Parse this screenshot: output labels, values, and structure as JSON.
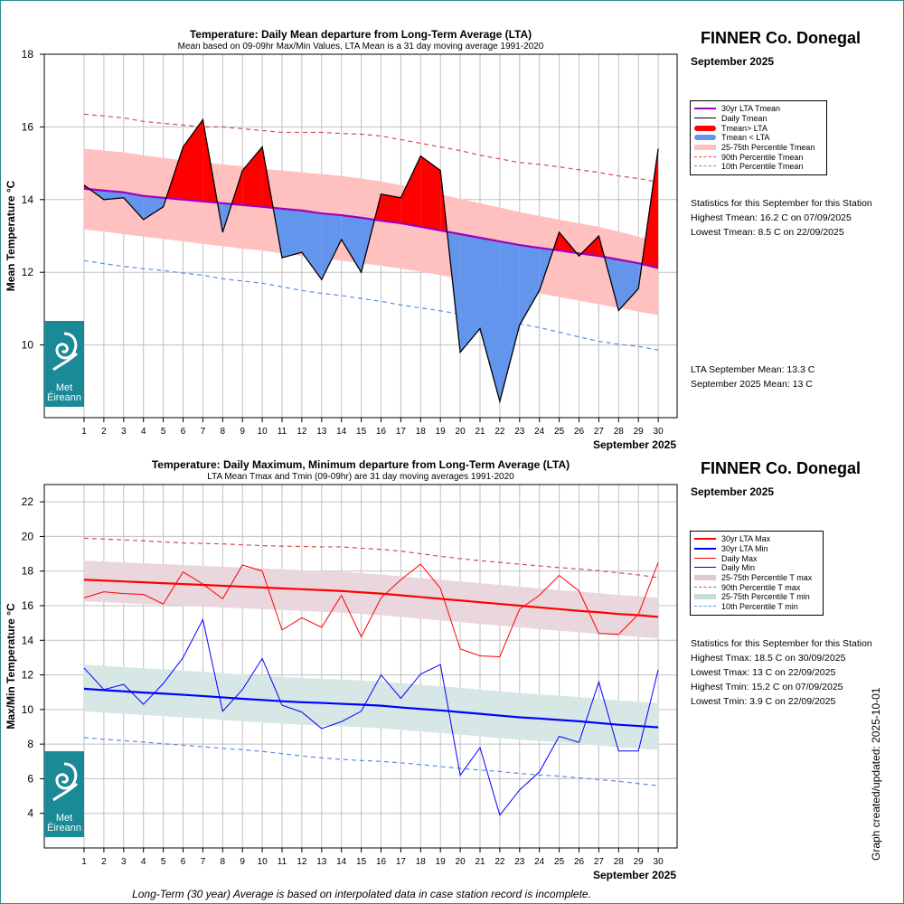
{
  "footnote": "Long-Term (30 year) Average is based on interpolated data in case station record is incomplete.",
  "graph_created": "Graph created/updated:  2025-10-01",
  "logo_text": [
    "Met",
    "Éireann"
  ],
  "panel1": {
    "station": "FINNER Co. Donegal",
    "month": "September 2025",
    "legend": [
      "30yr LTA Tmean",
      "Daily Tmean",
      "Tmean> LTA",
      "Tmean < LTA",
      "25-75th Percentile Tmean",
      "90th Percentile Tmean",
      "10th Percentile Tmean"
    ],
    "stats_title": "Statistics for this September for this Station",
    "stats": [
      "Highest Tmean: 16.2 C on 07/09/2025",
      "Lowest Tmean: 8.5 C on 22/09/2025"
    ],
    "means": [
      "LTA September Mean: 13.3 C",
      "September 2025 Mean: 13 C"
    ]
  },
  "panel2": {
    "station": "FINNER Co. Donegal",
    "month": "September 2025",
    "legend": [
      "30yr LTA Max",
      "30yr LTA Min",
      "Daily Max",
      "Daily Min",
      "25-75th Percentile T max",
      "90th Percentile T max",
      "25-75th Percentile T min",
      "10th Percentile T min"
    ],
    "stats_title": "Statistics for this September for this Station",
    "stats": [
      "Highest Tmax: 18.5 C on 30/09/2025",
      "Lowest Tmax: 13 C on 22/09/2025",
      "Highest Tmin: 15.2 C on 07/09/2025",
      "Lowest Tmin: 3.9 C on 22/09/2025"
    ]
  },
  "colors": {
    "lta_mean": "#a000c0",
    "daily_line": "#000000",
    "above": "#ff0000",
    "below": "#6495ed",
    "band_mean": "#ffc0c0",
    "p90": "#d05050",
    "p10": "#5a8ee0",
    "max_line": "#ff0000",
    "min_line": "#0000ff",
    "band_max": "#ead6dd",
    "band_min": "#d6e7e5",
    "logo": "#1a8a96"
  },
  "chart_data": [
    {
      "type": "line",
      "title": "Temperature: Daily Mean departure from Long-Term Average (LTA)",
      "subtitle": "Mean based on 09-09hr Max/Min Values, LTA Mean is a 31 day moving average 1991-2020",
      "xlabel": "September 2025",
      "ylabel": "Mean Temperature °C",
      "x": [
        1,
        2,
        3,
        4,
        5,
        6,
        7,
        8,
        9,
        10,
        11,
        12,
        13,
        14,
        15,
        16,
        17,
        18,
        19,
        20,
        21,
        22,
        23,
        24,
        25,
        26,
        27,
        28,
        29,
        30
      ],
      "ylim": [
        8,
        18
      ],
      "yticks": [
        10,
        12,
        14,
        16,
        18
      ],
      "grid": true,
      "legend_position": "right",
      "series": [
        {
          "name": "Daily Tmean",
          "values": [
            14.4,
            14.0,
            14.05,
            13.45,
            13.8,
            15.45,
            16.2,
            13.1,
            14.8,
            15.45,
            12.4,
            12.55,
            11.8,
            12.9,
            12.0,
            14.15,
            14.05,
            15.2,
            14.8,
            9.8,
            10.45,
            8.45,
            10.55,
            11.5,
            13.1,
            12.45,
            13.0,
            10.95,
            11.55,
            15.4
          ]
        },
        {
          "name": "30yr LTA Tmean",
          "values": [
            14.3,
            14.25,
            14.2,
            14.1,
            14.05,
            14.0,
            13.95,
            13.9,
            13.85,
            13.8,
            13.75,
            13.7,
            13.62,
            13.57,
            13.5,
            13.42,
            13.35,
            13.25,
            13.15,
            13.05,
            12.95,
            12.85,
            12.75,
            12.67,
            12.6,
            12.52,
            12.45,
            12.35,
            12.25,
            12.12
          ]
        },
        {
          "name": "90th Percentile Tmean",
          "values": [
            16.35,
            16.3,
            16.25,
            16.15,
            16.1,
            16.05,
            16.0,
            16.0,
            15.95,
            15.9,
            15.85,
            15.85,
            15.85,
            15.82,
            15.8,
            15.75,
            15.65,
            15.55,
            15.45,
            15.35,
            15.22,
            15.12,
            15.02,
            14.97,
            14.9,
            14.82,
            14.75,
            14.65,
            14.58,
            14.48
          ]
        },
        {
          "name": "10th Percentile Tmean",
          "values": [
            12.32,
            12.24,
            12.16,
            12.1,
            12.05,
            11.98,
            11.92,
            11.82,
            11.76,
            11.7,
            11.6,
            11.5,
            11.42,
            11.36,
            11.28,
            11.2,
            11.1,
            11.02,
            10.94,
            10.85,
            10.76,
            10.68,
            10.58,
            10.48,
            10.35,
            10.22,
            10.1,
            10.02,
            9.96,
            9.86
          ]
        },
        {
          "name": "25-75th Percentile Tmean (upper)",
          "values": [
            15.4,
            15.35,
            15.3,
            15.22,
            15.15,
            15.08,
            15.02,
            14.97,
            14.92,
            14.85,
            14.8,
            14.75,
            14.7,
            14.65,
            14.58,
            14.5,
            14.4,
            14.28,
            14.15,
            14.02,
            13.9,
            13.78,
            13.66,
            13.55,
            13.45,
            13.35,
            13.25,
            13.12,
            12.98,
            12.85
          ]
        },
        {
          "name": "25-75th Percentile Tmean (lower)",
          "values": [
            13.18,
            13.12,
            13.05,
            12.98,
            12.92,
            12.85,
            12.78,
            12.72,
            12.65,
            12.6,
            12.52,
            12.45,
            12.38,
            12.32,
            12.25,
            12.18,
            12.1,
            12.02,
            11.92,
            11.82,
            11.72,
            11.62,
            11.52,
            11.42,
            11.32,
            11.22,
            11.12,
            11.02,
            10.92,
            10.82
          ]
        }
      ]
    },
    {
      "type": "line",
      "title": "Temperature: Daily Maximum, Minimum departure from Long-Term Average (LTA)",
      "subtitle": "LTA Mean Tmax and Tmin (09-09hr) are 31 day moving averages 1991-2020",
      "xlabel": "September 2025",
      "ylabel": "Max/Min Temperature °C",
      "x": [
        1,
        2,
        3,
        4,
        5,
        6,
        7,
        8,
        9,
        10,
        11,
        12,
        13,
        14,
        15,
        16,
        17,
        18,
        19,
        20,
        21,
        22,
        23,
        24,
        25,
        26,
        27,
        28,
        29,
        30
      ],
      "ylim": [
        2,
        23
      ],
      "yticks": [
        4,
        6,
        8,
        10,
        12,
        14,
        16,
        18,
        20,
        22
      ],
      "grid": true,
      "legend_position": "right",
      "series": [
        {
          "name": "Daily Max",
          "values": [
            16.45,
            16.8,
            16.7,
            16.65,
            16.1,
            17.95,
            17.25,
            16.4,
            18.35,
            18.0,
            14.6,
            15.3,
            14.75,
            16.6,
            14.2,
            16.45,
            17.5,
            18.4,
            17.0,
            13.5,
            13.1,
            13.05,
            15.8,
            16.6,
            17.75,
            16.85,
            14.4,
            14.35,
            15.5,
            18.5
          ]
        },
        {
          "name": "Daily Min",
          "values": [
            12.4,
            11.15,
            11.45,
            10.3,
            11.5,
            13.0,
            15.2,
            9.9,
            11.15,
            12.95,
            10.25,
            9.85,
            8.9,
            9.3,
            9.9,
            12.0,
            10.65,
            12.05,
            12.6,
            6.2,
            7.8,
            3.9,
            5.35,
            6.4,
            8.45,
            8.1,
            11.6,
            7.6,
            7.6,
            12.3
          ]
        },
        {
          "name": "30yr LTA Max",
          "values": [
            17.5,
            17.45,
            17.4,
            17.35,
            17.3,
            17.25,
            17.2,
            17.15,
            17.1,
            17.05,
            17.0,
            16.95,
            16.9,
            16.85,
            16.77,
            16.7,
            16.6,
            16.5,
            16.4,
            16.3,
            16.2,
            16.1,
            16.0,
            15.9,
            15.8,
            15.7,
            15.62,
            15.52,
            15.45,
            15.35
          ]
        },
        {
          "name": "30yr LTA Min",
          "values": [
            11.2,
            11.12,
            11.05,
            10.98,
            10.92,
            10.85,
            10.78,
            10.7,
            10.62,
            10.55,
            10.48,
            10.42,
            10.38,
            10.33,
            10.28,
            10.22,
            10.12,
            10.03,
            9.95,
            9.85,
            9.75,
            9.65,
            9.55,
            9.48,
            9.4,
            9.32,
            9.22,
            9.12,
            9.05,
            8.97
          ]
        },
        {
          "name": "90th Percentile T max",
          "values": [
            19.9,
            19.85,
            19.8,
            19.75,
            19.68,
            19.62,
            19.6,
            19.57,
            19.52,
            19.47,
            19.44,
            19.42,
            19.4,
            19.4,
            19.32,
            19.25,
            19.15,
            19.0,
            18.85,
            18.72,
            18.6,
            18.5,
            18.4,
            18.3,
            18.2,
            18.12,
            18.02,
            17.9,
            17.78,
            17.62
          ]
        },
        {
          "name": "10th Percentile T min",
          "values": [
            8.38,
            8.28,
            8.2,
            8.12,
            8.02,
            7.94,
            7.85,
            7.75,
            7.68,
            7.58,
            7.45,
            7.32,
            7.2,
            7.12,
            7.05,
            7.0,
            6.92,
            6.82,
            6.7,
            6.6,
            6.5,
            6.42,
            6.3,
            6.22,
            6.15,
            6.05,
            5.95,
            5.85,
            5.72,
            5.6
          ]
        },
        {
          "name": "25-75th Percentile T max (upper)",
          "values": [
            18.6,
            18.55,
            18.5,
            18.45,
            18.4,
            18.35,
            18.3,
            18.25,
            18.2,
            18.15,
            18.1,
            18.05,
            18.0,
            17.95,
            17.88,
            17.8,
            17.7,
            17.6,
            17.5,
            17.4,
            17.3,
            17.2,
            17.1,
            17.0,
            16.9,
            16.82,
            16.72,
            16.62,
            16.55,
            16.45
          ]
        },
        {
          "name": "25-75th Percentile T max (lower)",
          "values": [
            16.25,
            16.2,
            16.15,
            16.1,
            16.05,
            16.0,
            15.95,
            15.9,
            15.85,
            15.8,
            15.75,
            15.7,
            15.65,
            15.6,
            15.52,
            15.45,
            15.35,
            15.25,
            15.15,
            15.05,
            14.95,
            14.85,
            14.75,
            14.65,
            14.55,
            14.47,
            14.37,
            14.27,
            14.2,
            14.1
          ]
        },
        {
          "name": "25-75th Percentile T min (upper)",
          "values": [
            12.6,
            12.52,
            12.45,
            12.38,
            12.32,
            12.25,
            12.18,
            12.1,
            12.02,
            11.95,
            11.88,
            11.82,
            11.78,
            11.73,
            11.68,
            11.62,
            11.52,
            11.43,
            11.35,
            11.25,
            11.15,
            11.05,
            10.95,
            10.88,
            10.8,
            10.72,
            10.62,
            10.52,
            10.45,
            10.37
          ]
        },
        {
          "name": "25-75th Percentile T min (lower)",
          "values": [
            9.9,
            9.82,
            9.75,
            9.68,
            9.62,
            9.55,
            9.48,
            9.4,
            9.32,
            9.25,
            9.18,
            9.12,
            9.08,
            9.03,
            8.98,
            8.92,
            8.82,
            8.73,
            8.65,
            8.55,
            8.45,
            8.35,
            8.25,
            8.18,
            8.1,
            8.02,
            7.92,
            7.82,
            7.75,
            7.67
          ]
        }
      ]
    }
  ]
}
